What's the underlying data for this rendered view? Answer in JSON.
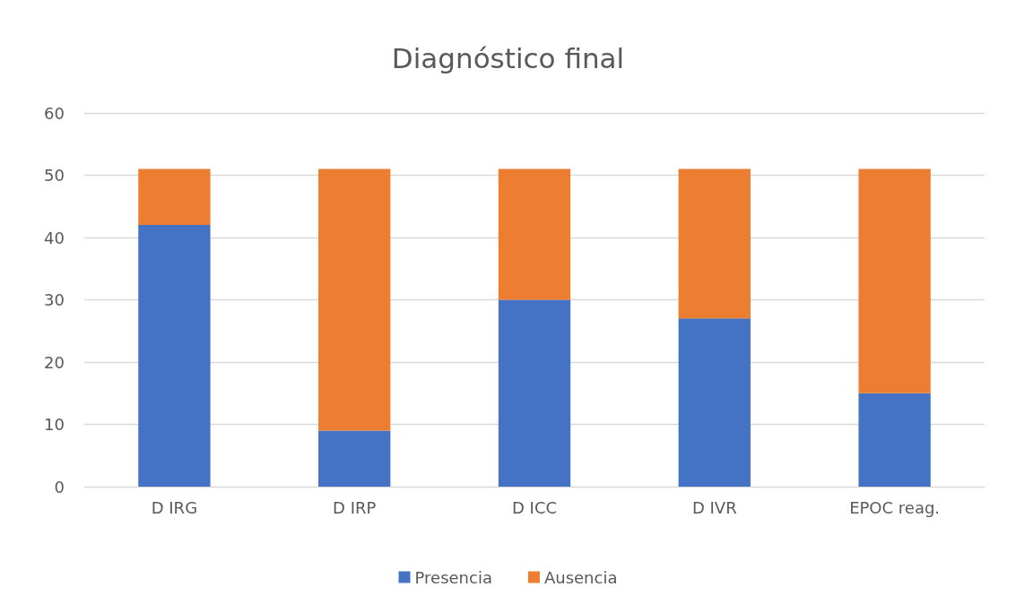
{
  "chart_data": {
    "type": "bar",
    "title": "Diagnóstico final",
    "stacked": true,
    "categories": [
      "D IRG",
      "D IRP",
      "D ICC",
      "D IVR",
      "EPOC reag."
    ],
    "series": [
      {
        "name": "Presencia",
        "color": "#4472c4",
        "values": [
          42,
          9,
          30,
          27,
          15
        ]
      },
      {
        "name": "Ausencia",
        "color": "#ed7d31",
        "values": [
          9,
          42,
          21,
          24,
          36
        ]
      }
    ],
    "ylim": [
      0,
      60
    ],
    "yticks": [
      0,
      10,
      20,
      30,
      40,
      50,
      60
    ],
    "grid": "y",
    "legend": "bottom"
  }
}
